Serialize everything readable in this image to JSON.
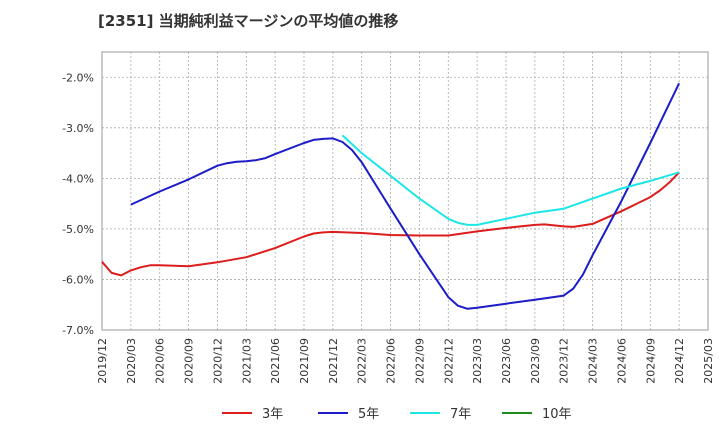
{
  "chart_data": {
    "type": "line",
    "title": "[2351]  当期純利益マージンの平均値の推移",
    "xlabel": "",
    "ylabel": "",
    "ylim": [
      -7.0,
      -1.5
    ],
    "yticks": [
      -2.0,
      -3.0,
      -4.0,
      -5.0,
      -6.0,
      -7.0
    ],
    "ytick_labels": [
      "-2.0%",
      "-3.0%",
      "-4.0%",
      "-5.0%",
      "-6.0%",
      "-7.0%"
    ],
    "xtick_labels": [
      "2019/12",
      "2020/03",
      "2020/06",
      "2020/09",
      "2020/12",
      "2021/03",
      "2021/06",
      "2021/09",
      "2021/12",
      "2022/03",
      "2022/06",
      "2022/09",
      "2022/12",
      "2023/03",
      "2023/06",
      "2023/09",
      "2023/12",
      "2024/03",
      "2024/06",
      "2024/09",
      "2024/12",
      "2025/03"
    ],
    "grid": true,
    "legend_position": "bottom",
    "series": [
      {
        "name": "3年",
        "color": "#dd1c1c",
        "x": [
          "2019/12",
          "2020/01",
          "2020/02",
          "2020/03",
          "2020/04",
          "2020/05",
          "2020/06",
          "2020/09",
          "2020/12",
          "2021/03",
          "2021/06",
          "2021/09",
          "2021/10",
          "2021/11",
          "2021/12",
          "2022/03",
          "2022/06",
          "2022/09",
          "2022/12",
          "2023/03",
          "2023/06",
          "2023/09",
          "2023/10",
          "2023/11",
          "2023/12",
          "2024/01",
          "2024/02",
          "2024/03",
          "2024/06",
          "2024/09",
          "2024/10",
          "2024/11",
          "2024/12"
        ],
        "values": [
          -5.65,
          -5.87,
          -5.92,
          -5.82,
          -5.76,
          -5.72,
          -5.72,
          -5.74,
          -5.66,
          -5.56,
          -5.38,
          -5.15,
          -5.09,
          -5.07,
          -5.06,
          -5.08,
          -5.12,
          -5.13,
          -5.13,
          -5.05,
          -4.98,
          -4.92,
          -4.91,
          -4.93,
          -4.95,
          -4.96,
          -4.93,
          -4.9,
          -4.65,
          -4.37,
          -4.24,
          -4.08,
          -3.88
        ]
      },
      {
        "name": "5年",
        "color": "#1c1cc8",
        "x": [
          "2020/03",
          "2020/06",
          "2020/09",
          "2020/12",
          "2021/01",
          "2021/02",
          "2021/03",
          "2021/04",
          "2021/05",
          "2021/06",
          "2021/09",
          "2021/10",
          "2021/11",
          "2021/12",
          "2022/01",
          "2022/02",
          "2022/03",
          "2022/06",
          "2022/09",
          "2022/12",
          "2023/01",
          "2023/02",
          "2023/03",
          "2023/06",
          "2023/09",
          "2023/12",
          "2024/01",
          "2024/02",
          "2024/03",
          "2024/06",
          "2024/09",
          "2024/12"
        ],
        "values": [
          -4.52,
          -4.26,
          -4.02,
          -3.75,
          -3.7,
          -3.67,
          -3.66,
          -3.64,
          -3.6,
          -3.52,
          -3.3,
          -3.24,
          -3.22,
          -3.21,
          -3.28,
          -3.44,
          -3.68,
          -4.6,
          -5.5,
          -6.35,
          -6.52,
          -6.58,
          -6.56,
          -6.48,
          -6.4,
          -6.32,
          -6.18,
          -5.9,
          -5.52,
          -4.45,
          -3.3,
          -2.12
        ]
      },
      {
        "name": "7年",
        "color": "#1ce6e6",
        "x": [
          "2022/01",
          "2022/03",
          "2022/06",
          "2022/09",
          "2022/12",
          "2023/01",
          "2023/02",
          "2023/03",
          "2023/06",
          "2023/09",
          "2023/12",
          "2024/03",
          "2024/06",
          "2024/09",
          "2024/12"
        ],
        "values": [
          -3.15,
          -3.5,
          -3.95,
          -4.4,
          -4.8,
          -4.88,
          -4.92,
          -4.92,
          -4.8,
          -4.68,
          -4.6,
          -4.4,
          -4.2,
          -4.05,
          -3.88
        ]
      },
      {
        "name": "10年",
        "color": "#1c8c1c",
        "x": [],
        "values": []
      }
    ]
  }
}
